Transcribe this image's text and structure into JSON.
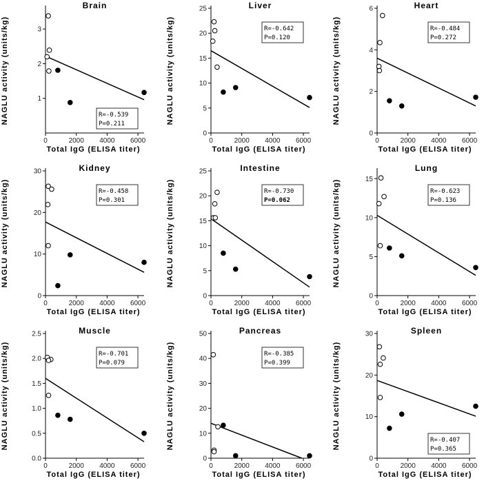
{
  "figure": {
    "ylabel": "NAGLU activity (units/kg)",
    "xlabel": "Total IgG (ELISA titer)"
  },
  "chart_data": [
    {
      "type": "scatter",
      "title": "Brain",
      "xlim": [
        0,
        6400
      ],
      "ylim": [
        0,
        3.6
      ],
      "xticks": [
        0,
        2000,
        4000,
        6000
      ],
      "yticks": [
        1,
        2,
        3
      ],
      "open_points": [
        [
          180,
          3.38
        ],
        [
          250,
          2.39
        ],
        [
          100,
          2.2
        ],
        [
          220,
          1.79
        ]
      ],
      "filled_points": [
        [
          800,
          1.81
        ],
        [
          1600,
          0.88
        ],
        [
          6400,
          1.17
        ]
      ],
      "regression": [
        [
          0,
          2.22
        ],
        [
          6400,
          0.96
        ]
      ],
      "stats": {
        "r": "R=-0.539",
        "p": "P=0.211",
        "p_bold": false,
        "position": "bottom-right"
      }
    },
    {
      "type": "scatter",
      "title": "Liver",
      "xlim": [
        0,
        6400
      ],
      "ylim": [
        0,
        25
      ],
      "xticks": [
        0,
        2000,
        4000,
        6000
      ],
      "yticks": [
        0,
        5,
        10,
        15,
        20,
        25
      ],
      "open_points": [
        [
          200,
          22.3
        ],
        [
          250,
          20.5
        ],
        [
          120,
          18.4
        ],
        [
          400,
          13.2
        ]
      ],
      "filled_points": [
        [
          800,
          8.2
        ],
        [
          1600,
          9.1
        ],
        [
          6400,
          7.1
        ]
      ],
      "regression": [
        [
          0,
          16.5
        ],
        [
          6400,
          5.1
        ]
      ],
      "stats": {
        "r": "R=-0.642",
        "p": "P=0.120",
        "p_bold": false,
        "position": "top-right"
      }
    },
    {
      "type": "scatter",
      "title": "Heart",
      "xlim": [
        0,
        6400
      ],
      "ylim": [
        0,
        6
      ],
      "xticks": [
        0,
        2000,
        4000,
        6000
      ],
      "yticks": [
        0,
        2,
        4,
        6
      ],
      "open_points": [
        [
          350,
          5.65
        ],
        [
          180,
          4.35
        ],
        [
          120,
          3.2
        ],
        [
          150,
          3.0
        ]
      ],
      "filled_points": [
        [
          800,
          1.55
        ],
        [
          1600,
          1.3
        ],
        [
          6400,
          1.72
        ]
      ],
      "regression": [
        [
          0,
          3.6
        ],
        [
          6400,
          1.3
        ]
      ],
      "stats": {
        "r": "R=-0.484",
        "p": "P=0.272",
        "p_bold": false,
        "position": "top-right"
      }
    },
    {
      "type": "scatter",
      "title": "Kidney",
      "xlim": [
        0,
        6400
      ],
      "ylim": [
        0,
        30
      ],
      "xticks": [
        0,
        2000,
        4000,
        6000
      ],
      "yticks": [
        0,
        10,
        20,
        30
      ],
      "open_points": [
        [
          180,
          26.3
        ],
        [
          400,
          25.6
        ],
        [
          150,
          21.9
        ],
        [
          180,
          12.0
        ]
      ],
      "filled_points": [
        [
          800,
          2.4
        ],
        [
          1600,
          9.8
        ],
        [
          6400,
          8.0
        ]
      ],
      "regression": [
        [
          0,
          17.7
        ],
        [
          6400,
          5.6
        ]
      ],
      "stats": {
        "r": "R=-0.458",
        "p": "P=0.301",
        "p_bold": false,
        "position": "top-right"
      }
    },
    {
      "type": "scatter",
      "title": "Intestine",
      "xlim": [
        0,
        6400
      ],
      "ylim": [
        0,
        25
      ],
      "xticks": [
        0,
        2000,
        4000,
        6000
      ],
      "yticks": [
        0,
        5,
        10,
        15,
        20,
        25
      ],
      "open_points": [
        [
          400,
          20.7
        ],
        [
          250,
          18.4
        ],
        [
          150,
          15.6
        ],
        [
          280,
          15.6
        ]
      ],
      "filled_points": [
        [
          800,
          8.5
        ],
        [
          1600,
          5.3
        ],
        [
          6400,
          3.8
        ]
      ],
      "regression": [
        [
          0,
          15.4
        ],
        [
          6400,
          1.7
        ]
      ],
      "stats": {
        "r": "R=-0.730",
        "p": "P=0.062",
        "p_bold": true,
        "position": "top-right"
      }
    },
    {
      "type": "scatter",
      "title": "Lung",
      "xlim": [
        0,
        6400
      ],
      "ylim": [
        0,
        16
      ],
      "xticks": [
        0,
        2000,
        4000,
        6000
      ],
      "yticks": [
        0,
        5,
        10,
        15
      ],
      "open_points": [
        [
          250,
          15.1
        ],
        [
          450,
          12.7
        ],
        [
          120,
          11.8
        ],
        [
          200,
          6.4
        ]
      ],
      "filled_points": [
        [
          800,
          6.1
        ],
        [
          1600,
          5.1
        ],
        [
          6400,
          3.6
        ]
      ],
      "regression": [
        [
          0,
          10.3
        ],
        [
          6400,
          2.6
        ]
      ],
      "stats": {
        "r": "R=-0.623",
        "p": "P=0.136",
        "p_bold": false,
        "position": "top-right"
      }
    },
    {
      "type": "scatter",
      "title": "Muscle",
      "xlim": [
        0,
        6400
      ],
      "ylim": [
        0,
        2.5
      ],
      "xticks": [
        0,
        2000,
        4000,
        6000
      ],
      "yticks": [
        0.0,
        0.5,
        1.0,
        1.5,
        2.0,
        2.5
      ],
      "open_points": [
        [
          120,
          2.02
        ],
        [
          350,
          1.98
        ],
        [
          200,
          1.96
        ],
        [
          200,
          1.26
        ]
      ],
      "filled_points": [
        [
          800,
          0.86
        ],
        [
          1600,
          0.78
        ],
        [
          6400,
          0.5
        ]
      ],
      "regression": [
        [
          0,
          1.6
        ],
        [
          6400,
          0.33
        ]
      ],
      "stats": {
        "r": "R=-0.701",
        "p": "P=0.079",
        "p_bold": false,
        "position": "top-right"
      }
    },
    {
      "type": "scatter",
      "title": "Pancreas",
      "xlim": [
        0,
        6400
      ],
      "ylim": [
        0,
        50
      ],
      "xticks": [
        0,
        2000,
        4000,
        6000
      ],
      "yticks": [
        0,
        10,
        20,
        30,
        40,
        50
      ],
      "open_points": [
        [
          150,
          41.5
        ],
        [
          450,
          12.6
        ],
        [
          200,
          3.2
        ],
        [
          200,
          2.6
        ]
      ],
      "filled_points": [
        [
          800,
          13.2
        ],
        [
          1600,
          1.0
        ],
        [
          6400,
          1.0
        ]
      ],
      "regression": [
        [
          0,
          14.0
        ],
        [
          5900,
          0
        ]
      ],
      "stats": {
        "r": "R=-0.385",
        "p": "P=0.399",
        "p_bold": false,
        "position": "top-right"
      }
    },
    {
      "type": "scatter",
      "title": "Spleen",
      "xlim": [
        0,
        6400
      ],
      "ylim": [
        0,
        30
      ],
      "xticks": [
        0,
        2000,
        4000,
        6000
      ],
      "yticks": [
        0,
        10,
        20,
        30
      ],
      "open_points": [
        [
          150,
          26.8
        ],
        [
          400,
          24.1
        ],
        [
          200,
          22.6
        ],
        [
          200,
          14.6
        ]
      ],
      "filled_points": [
        [
          800,
          7.2
        ],
        [
          1600,
          10.6
        ],
        [
          6400,
          12.5
        ]
      ],
      "regression": [
        [
          0,
          18.7
        ],
        [
          6400,
          10.1
        ]
      ],
      "stats": {
        "r": "R=-0.407",
        "p": "P=0.365",
        "p_bold": false,
        "position": "bottom-right"
      }
    }
  ]
}
